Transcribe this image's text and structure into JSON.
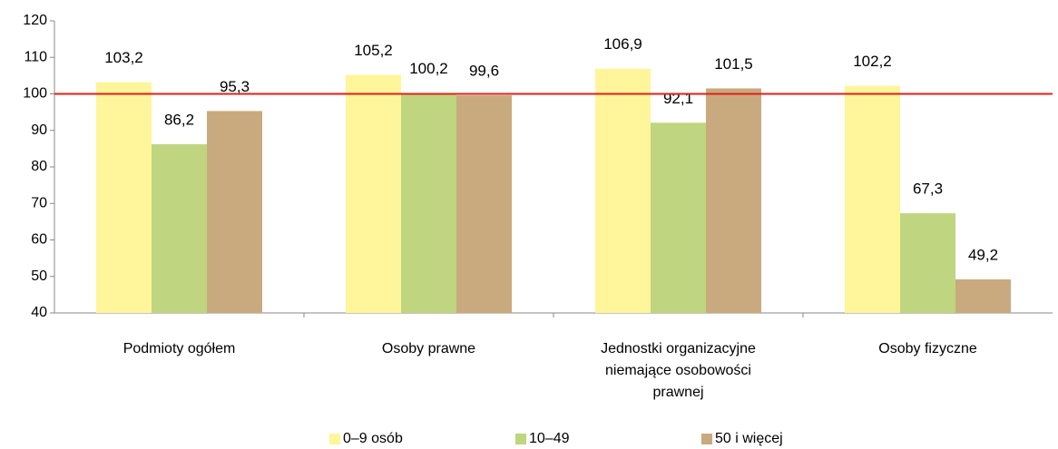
{
  "chart_data": {
    "type": "bar",
    "categories": [
      "Podmioty ogółem",
      "Osoby prawne",
      "Jednostki organizacyjne niemające osobowości prawnej",
      "Osoby fizyczne"
    ],
    "series": [
      {
        "name": "0–9 osób",
        "color": "#fff59a",
        "values": [
          103.2,
          105.2,
          106.9,
          102.2
        ],
        "value_labels": [
          "103,2",
          "105,2",
          "106,9",
          "102,2"
        ]
      },
      {
        "name": "10–49",
        "color": "#c0d57f",
        "values": [
          86.2,
          100.2,
          92.1,
          67.3
        ],
        "value_labels": [
          "86,2",
          "100,2",
          "92,1",
          "67,3"
        ]
      },
      {
        "name": "50 i więcej",
        "color": "#c9aa7e",
        "values": [
          95.3,
          99.6,
          101.5,
          49.2
        ],
        "value_labels": [
          "95,3",
          "99,6",
          "101,5",
          "49,2"
        ]
      }
    ],
    "ylim": [
      40,
      120
    ],
    "yticks": [
      40,
      50,
      60,
      70,
      80,
      90,
      100,
      110,
      120
    ],
    "reference_line": {
      "value": 100,
      "color": "#e0201b"
    },
    "grid": false,
    "legend": "bottom"
  }
}
